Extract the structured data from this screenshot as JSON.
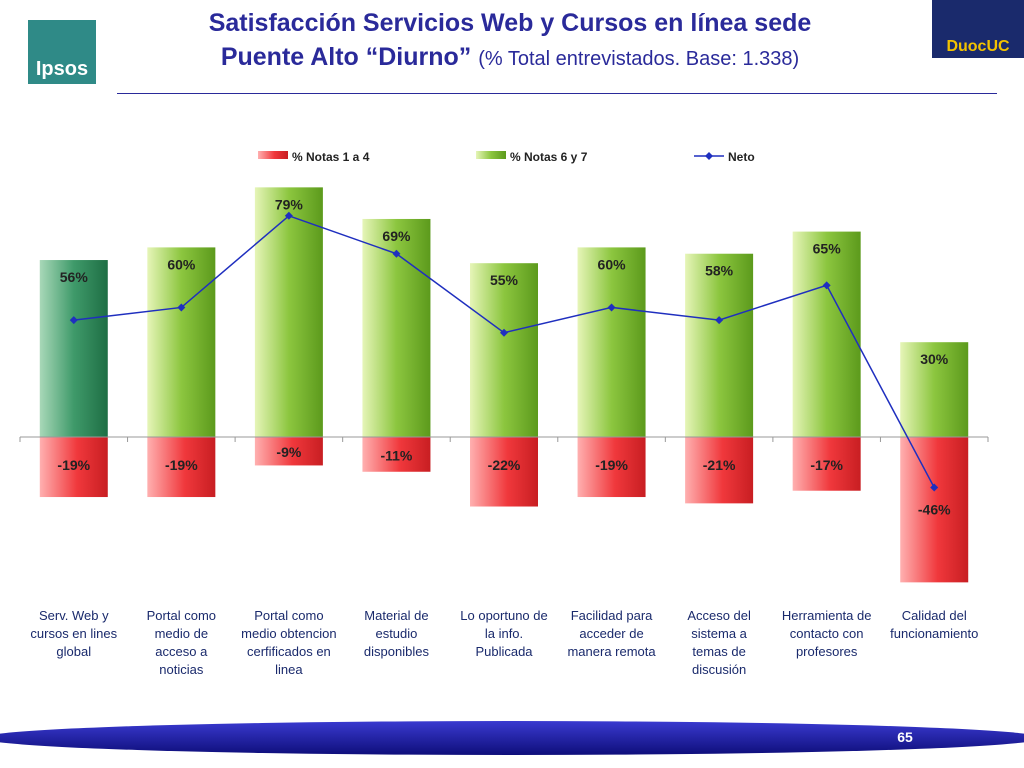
{
  "title": {
    "line1": "Satisfacción Servicios Web y Cursos en línea sede",
    "line2": "Puente Alto “Diurno”",
    "subtitle": "(% Total entrevistados. Base: 1.338)"
  },
  "logos": {
    "left_text": "Ipsos",
    "right_text": "DuocUC"
  },
  "page_number": "65",
  "colors": {
    "title": "#2a2a9a",
    "negative_bar": "#f0383c",
    "positive_bar": "#8cc63f",
    "first_positive_bar": "#3f9a6a",
    "neto_line": "#1f2fbf"
  },
  "chart_data": {
    "type": "bar",
    "categories": [
      "Serv. Web y cursos en lines global",
      "Portal como medio de acceso a noticias",
      "Portal como medio obtencion cerfificados en linea",
      "Material de estudio disponibles",
      "Lo oportuno de la info. Publicada",
      "Facilidad para acceder de manera remota",
      "Acceso del sistema a temas de discusión",
      "Herramienta de contacto con profesores",
      "Calidad del funcionamiento"
    ],
    "category_lines": [
      [
        "Serv. Web y",
        "cursos en lines",
        "global"
      ],
      [
        "Portal como",
        "medio de",
        "acceso a",
        "noticias"
      ],
      [
        "Portal como",
        "medio obtencion",
        "cerfificados en",
        "linea"
      ],
      [
        "Material de",
        "estudio",
        "disponibles"
      ],
      [
        "Lo oportuno de",
        "la info.",
        "Publicada"
      ],
      [
        "Facilidad para",
        "acceder de",
        "manera remota"
      ],
      [
        "Acceso del",
        "sistema a",
        "temas de",
        "discusión"
      ],
      [
        "Herramienta de",
        "contacto con",
        "profesores"
      ],
      [
        "Calidad del",
        "funcionamiento"
      ]
    ],
    "series": [
      {
        "name": "% Notas 1 a 4",
        "values": [
          -19,
          -19,
          -9,
          -11,
          -22,
          -19,
          -21,
          -17,
          -46
        ],
        "labels": [
          "-19%",
          "-19%",
          "-9%",
          "-11%",
          "-22%",
          "-19%",
          "-21%",
          "-17%",
          "-46%"
        ]
      },
      {
        "name": "% Notas 6 y 7",
        "values": [
          56,
          60,
          79,
          69,
          55,
          60,
          58,
          65,
          30
        ],
        "labels": [
          "56%",
          "60%",
          "79%",
          "69%",
          "55%",
          "60%",
          "58%",
          "65%",
          "30%"
        ]
      },
      {
        "name": "Neto",
        "type": "line",
        "values": [
          37,
          41,
          70,
          58,
          33,
          41,
          37,
          48,
          -16
        ]
      }
    ],
    "ylim": [
      -50,
      80
    ],
    "title": "",
    "xlabel": "",
    "ylabel": "",
    "legend": "top"
  }
}
